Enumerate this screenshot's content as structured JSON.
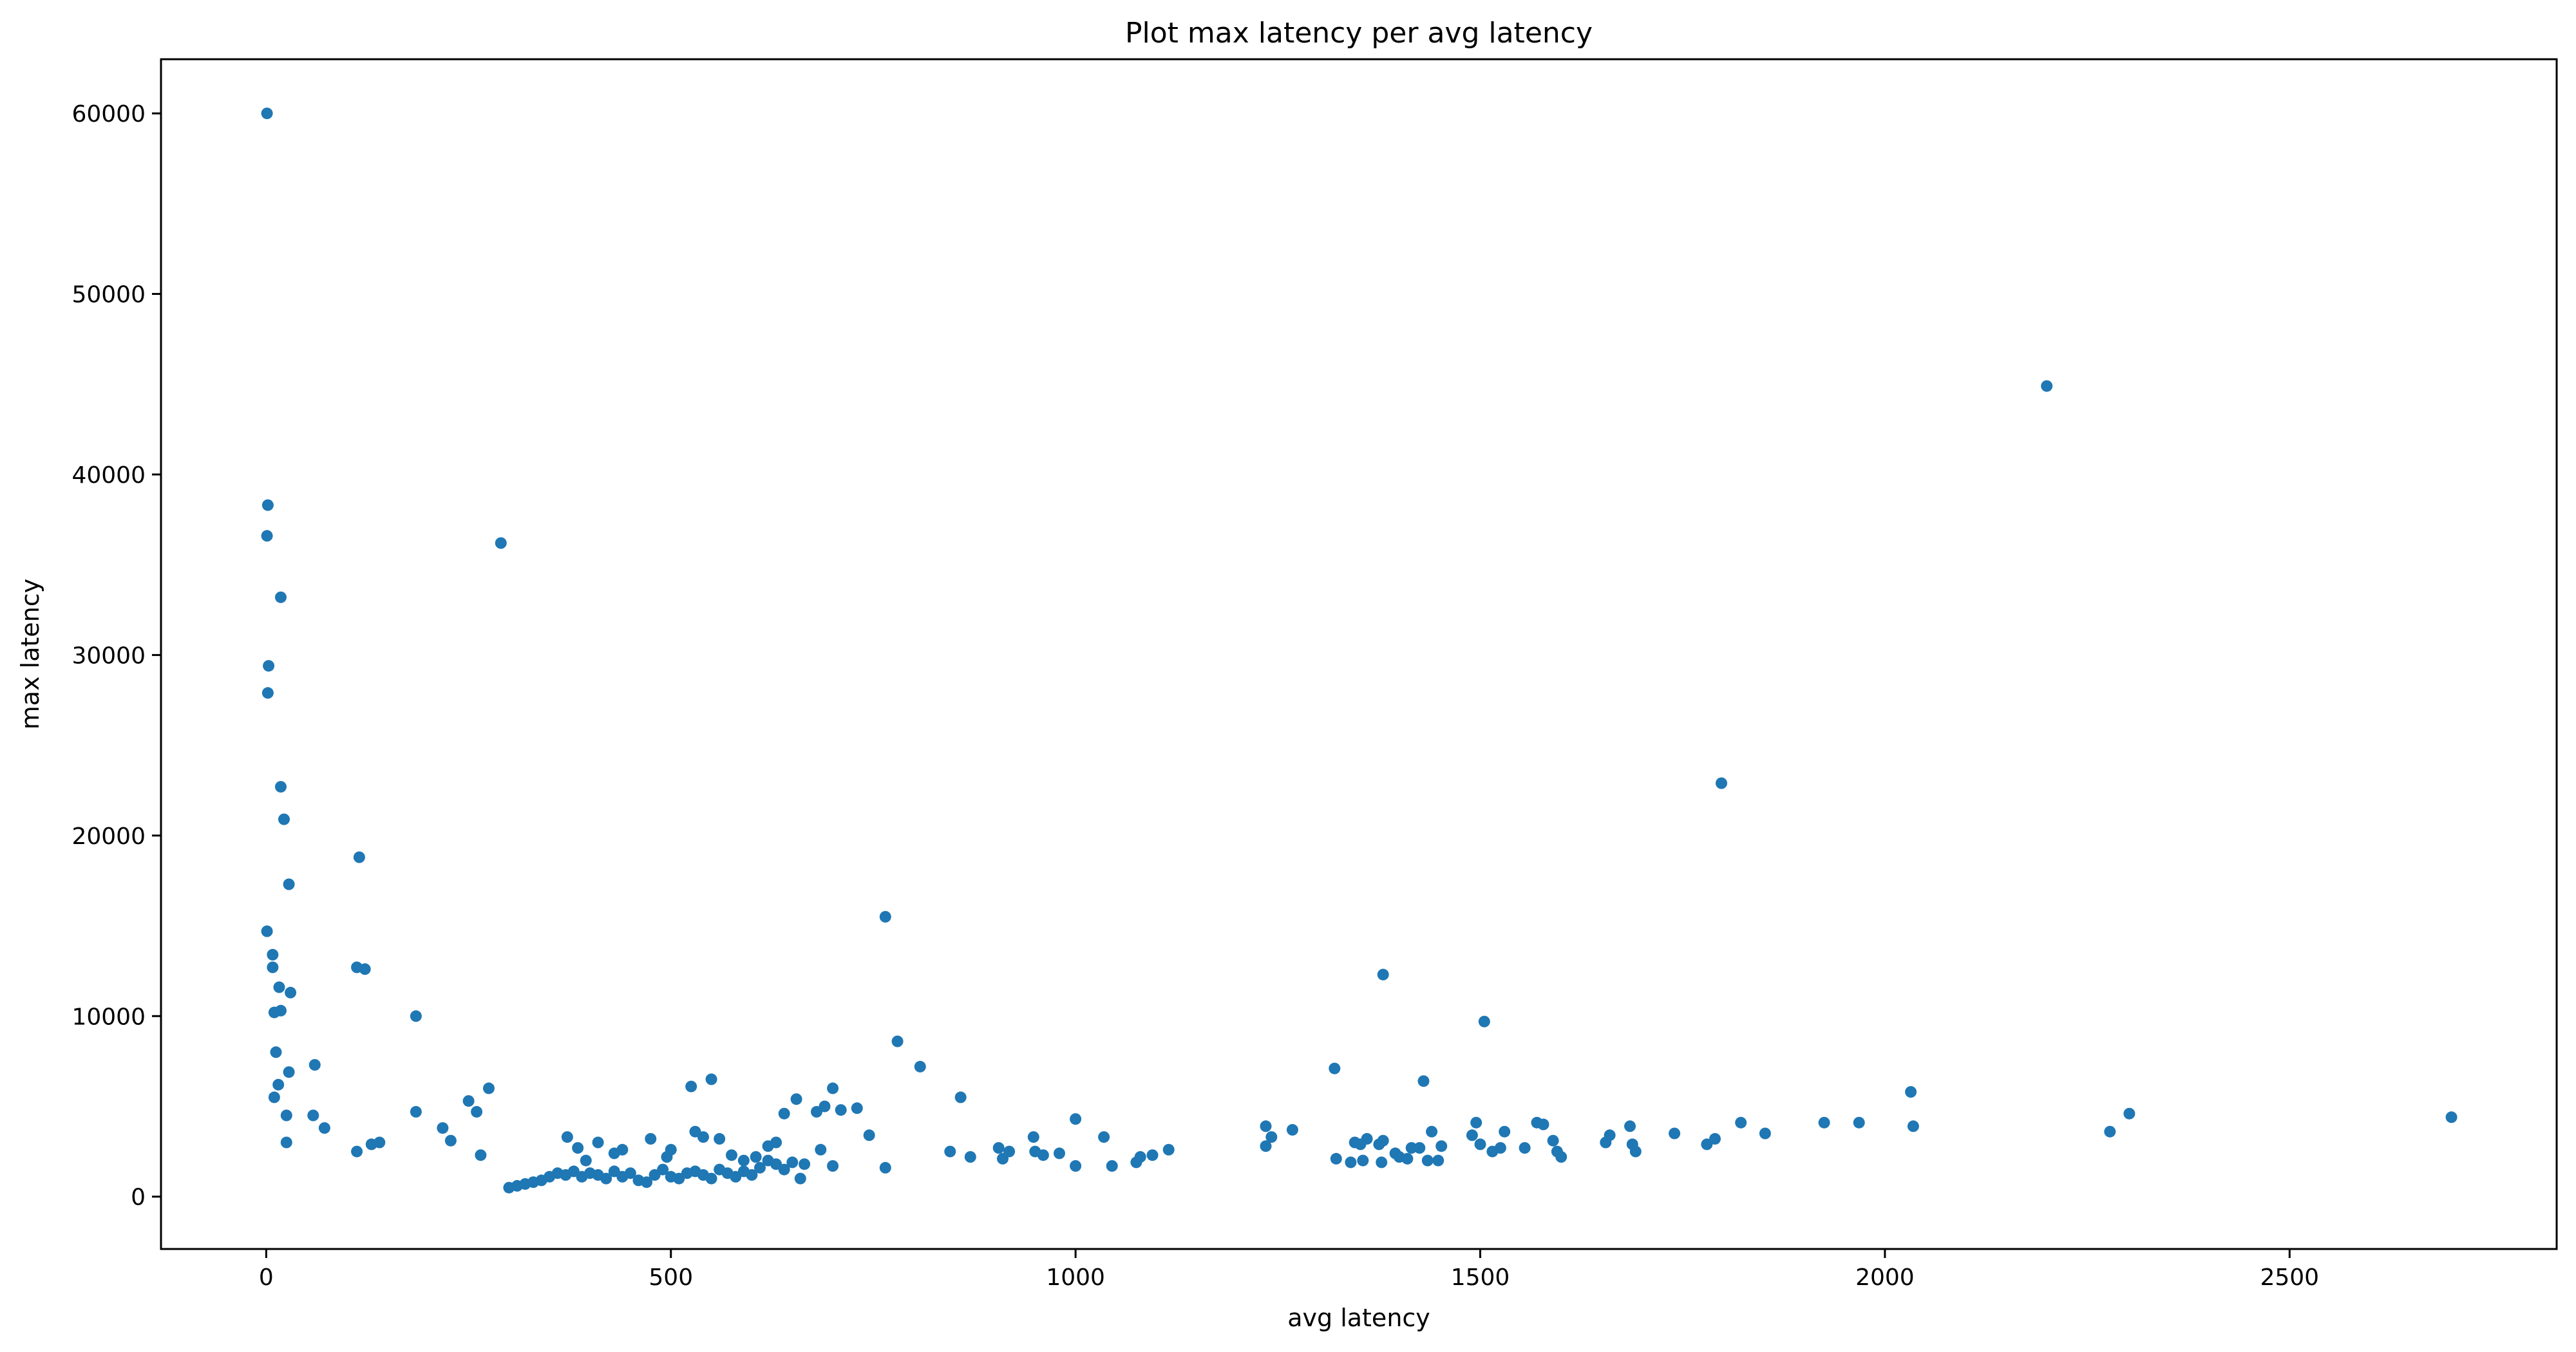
{
  "chart_data": {
    "type": "scatter",
    "title": "Plot max latency per avg latency",
    "xlabel": "avg latency",
    "ylabel": "max latency",
    "xlim": [
      -130,
      2830
    ],
    "ylim": [
      -2900,
      63000
    ],
    "xticks": [
      0,
      500,
      1000,
      1500,
      2000,
      2500
    ],
    "yticks": [
      0,
      10000,
      20000,
      30000,
      40000,
      50000,
      60000
    ],
    "xtick_labels": [
      "0",
      "500",
      "1000",
      "1500",
      "2000",
      "2500"
    ],
    "ytick_labels": [
      "0",
      "10000",
      "20000",
      "30000",
      "40000",
      "50000",
      "60000"
    ],
    "grid": false,
    "marker_color": "#1f77b4",
    "series": [
      {
        "points": [
          [
            1,
            60000
          ],
          [
            2,
            38300
          ],
          [
            1,
            36600
          ],
          [
            18,
            33200
          ],
          [
            3,
            29400
          ],
          [
            2,
            27900
          ],
          [
            290,
            36200
          ],
          [
            18,
            22700
          ],
          [
            22,
            20900
          ],
          [
            28,
            17300
          ],
          [
            115,
            18800
          ],
          [
            1,
            14700
          ],
          [
            8,
            13400
          ],
          [
            8,
            12700
          ],
          [
            112,
            12700
          ],
          [
            122,
            12600
          ],
          [
            16,
            11600
          ],
          [
            30,
            11300
          ],
          [
            10,
            10200
          ],
          [
            18,
            10300
          ],
          [
            185,
            10000
          ],
          [
            12,
            8000
          ],
          [
            10,
            5500
          ],
          [
            15,
            6200
          ],
          [
            60,
            7300
          ],
          [
            28,
            6900
          ],
          [
            25,
            4500
          ],
          [
            58,
            4500
          ],
          [
            72,
            3800
          ],
          [
            185,
            4700
          ],
          [
            218,
            3800
          ],
          [
            260,
            4700
          ],
          [
            275,
            6000
          ],
          [
            250,
            5300
          ],
          [
            25,
            3000
          ],
          [
            112,
            2500
          ],
          [
            140,
            3000
          ],
          [
            130,
            2900
          ],
          [
            228,
            3100
          ],
          [
            265,
            2300
          ],
          [
            300,
            500
          ],
          [
            310,
            600
          ],
          [
            320,
            700
          ],
          [
            330,
            800
          ],
          [
            340,
            900
          ],
          [
            350,
            1100
          ],
          [
            360,
            1300
          ],
          [
            370,
            1200
          ],
          [
            380,
            1400
          ],
          [
            390,
            1100
          ],
          [
            400,
            1300
          ],
          [
            410,
            1200
          ],
          [
            420,
            1000
          ],
          [
            430,
            1400
          ],
          [
            440,
            1100
          ],
          [
            450,
            1300
          ],
          [
            460,
            900
          ],
          [
            470,
            800
          ],
          [
            480,
            1200
          ],
          [
            490,
            1500
          ],
          [
            500,
            1100
          ],
          [
            510,
            1000
          ],
          [
            520,
            1300
          ],
          [
            530,
            1400
          ],
          [
            540,
            1200
          ],
          [
            550,
            1000
          ],
          [
            560,
            1500
          ],
          [
            570,
            1300
          ],
          [
            580,
            1100
          ],
          [
            590,
            1400
          ],
          [
            600,
            1200
          ],
          [
            610,
            1600
          ],
          [
            620,
            2000
          ],
          [
            630,
            1800
          ],
          [
            640,
            1500
          ],
          [
            650,
            1900
          ],
          [
            660,
            1000
          ],
          [
            372,
            3300
          ],
          [
            385,
            2700
          ],
          [
            410,
            3000
          ],
          [
            395,
            2000
          ],
          [
            430,
            2400
          ],
          [
            440,
            2600
          ],
          [
            475,
            3200
          ],
          [
            495,
            2200
          ],
          [
            500,
            2600
          ],
          [
            525,
            6100
          ],
          [
            550,
            6500
          ],
          [
            530,
            3600
          ],
          [
            540,
            3300
          ],
          [
            560,
            3200
          ],
          [
            575,
            2300
          ],
          [
            590,
            2000
          ],
          [
            605,
            2200
          ],
          [
            620,
            2800
          ],
          [
            630,
            3000
          ],
          [
            640,
            4600
          ],
          [
            655,
            5400
          ],
          [
            665,
            1800
          ],
          [
            680,
            4700
          ],
          [
            690,
            5000
          ],
          [
            700,
            6000
          ],
          [
            710,
            4800
          ],
          [
            730,
            4900
          ],
          [
            745,
            3400
          ],
          [
            765,
            1600
          ],
          [
            685,
            2600
          ],
          [
            700,
            1700
          ],
          [
            765,
            15500
          ],
          [
            780,
            8600
          ],
          [
            808,
            7200
          ],
          [
            858,
            5500
          ],
          [
            845,
            2500
          ],
          [
            870,
            2200
          ],
          [
            905,
            2700
          ],
          [
            910,
            2100
          ],
          [
            918,
            2500
          ],
          [
            948,
            3300
          ],
          [
            950,
            2500
          ],
          [
            960,
            2300
          ],
          [
            980,
            2400
          ],
          [
            1000,
            4300
          ],
          [
            1000,
            1700
          ],
          [
            1035,
            3300
          ],
          [
            1045,
            1700
          ],
          [
            1075,
            1900
          ],
          [
            1080,
            2200
          ],
          [
            1095,
            2300
          ],
          [
            1115,
            2600
          ],
          [
            1235,
            3900
          ],
          [
            1235,
            2800
          ],
          [
            1242,
            3300
          ],
          [
            1268,
            3700
          ],
          [
            1320,
            7100
          ],
          [
            1322,
            2100
          ],
          [
            1340,
            1900
          ],
          [
            1345,
            3000
          ],
          [
            1352,
            2900
          ],
          [
            1355,
            2000
          ],
          [
            1360,
            3200
          ],
          [
            1375,
            2900
          ],
          [
            1380,
            3100
          ],
          [
            1378,
            1900
          ],
          [
            1380,
            12300
          ],
          [
            1395,
            2400
          ],
          [
            1400,
            2200
          ],
          [
            1410,
            2100
          ],
          [
            1415,
            2700
          ],
          [
            1425,
            2700
          ],
          [
            1430,
            6400
          ],
          [
            1435,
            2000
          ],
          [
            1440,
            3600
          ],
          [
            1448,
            2000
          ],
          [
            1452,
            2800
          ],
          [
            1490,
            3400
          ],
          [
            1495,
            4100
          ],
          [
            1500,
            2900
          ],
          [
            1505,
            9700
          ],
          [
            1515,
            2500
          ],
          [
            1525,
            2700
          ],
          [
            1530,
            3600
          ],
          [
            1555,
            2700
          ],
          [
            1570,
            4100
          ],
          [
            1578,
            4000
          ],
          [
            1590,
            3100
          ],
          [
            1595,
            2500
          ],
          [
            1600,
            2200
          ],
          [
            1655,
            3000
          ],
          [
            1660,
            3400
          ],
          [
            1685,
            3900
          ],
          [
            1688,
            2900
          ],
          [
            1692,
            2500
          ],
          [
            1740,
            3500
          ],
          [
            1780,
            2900
          ],
          [
            1790,
            3200
          ],
          [
            1798,
            22900
          ],
          [
            1822,
            4100
          ],
          [
            1852,
            3500
          ],
          [
            1925,
            4100
          ],
          [
            1968,
            4100
          ],
          [
            2032,
            5800
          ],
          [
            2035,
            3900
          ],
          [
            2200,
            44900
          ],
          [
            2278,
            3600
          ],
          [
            2302,
            4600
          ],
          [
            2700,
            4400
          ]
        ]
      }
    ]
  }
}
